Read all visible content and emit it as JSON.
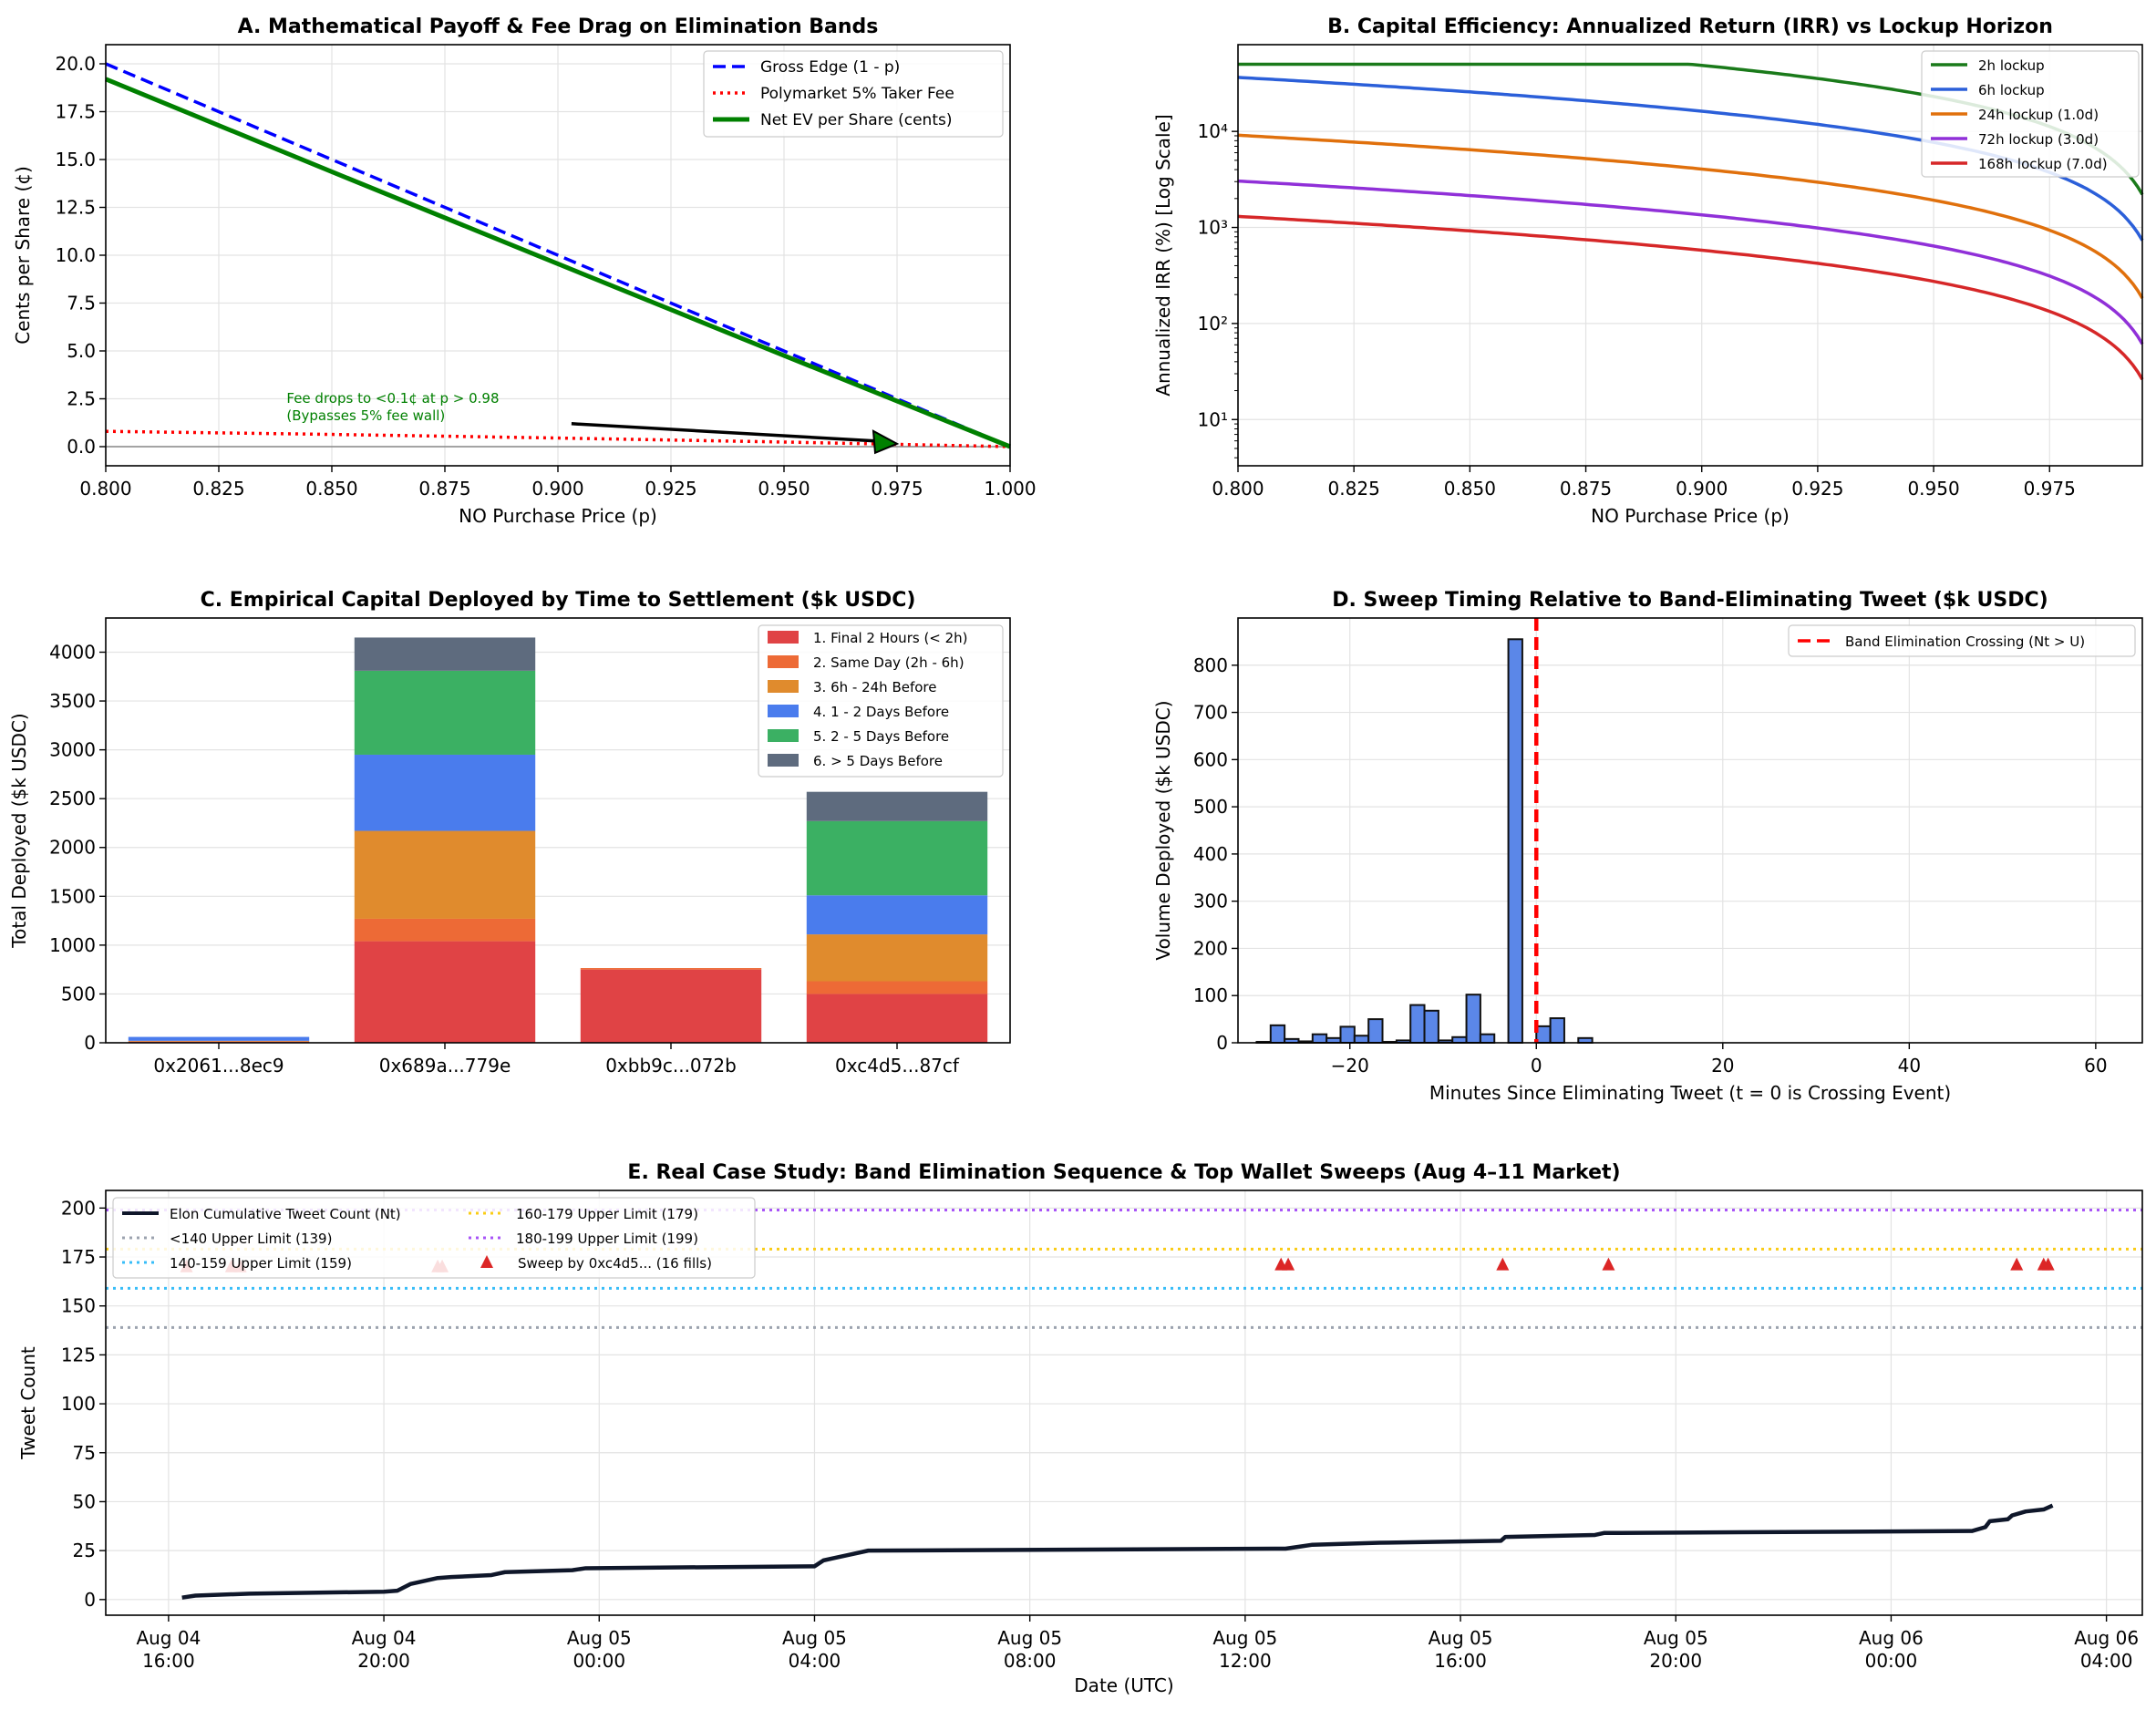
{
  "chart_data": [
    {
      "id": "A",
      "type": "line",
      "title": "A. Mathematical Payoff & Fee Drag on Elimination Bands",
      "xlabel": "NO Purchase Price (p)",
      "ylabel": "Cents per Share (¢)",
      "xlim": [
        0.8,
        1.0
      ],
      "ylim": [
        -1.0,
        21.0
      ],
      "xticks": [
        "0.800",
        "0.825",
        "0.850",
        "0.875",
        "0.900",
        "0.925",
        "0.950",
        "0.975",
        "1.000"
      ],
      "yticks": [
        "0.0",
        "2.5",
        "5.0",
        "7.5",
        "10.0",
        "12.5",
        "15.0",
        "17.5",
        "20.0"
      ],
      "grid": true,
      "legend_position": "top-right",
      "series": [
        {
          "name": "Gross Edge (1 - p)",
          "color": "#0000ff",
          "style": "dashed",
          "x": [
            0.8,
            1.0
          ],
          "y": [
            20.0,
            0.0
          ]
        },
        {
          "name": "Polymarket 5% Taker Fee",
          "color": "#ff0000",
          "style": "dotted",
          "x": [
            0.8,
            0.85,
            0.9,
            0.95,
            1.0
          ],
          "y": [
            0.8,
            0.64,
            0.45,
            0.24,
            0.0
          ]
        },
        {
          "name": "Net EV per Share (cents)",
          "color": "#008000",
          "style": "solid",
          "x": [
            0.8,
            0.85,
            0.9,
            0.95,
            1.0
          ],
          "y": [
            19.2,
            14.36,
            9.55,
            4.76,
            0.0
          ]
        }
      ],
      "annotation": {
        "lines": [
          "Fee drops to <0.1¢ at p > 0.98",
          "(Bypasses 5% fee wall)"
        ],
        "text_at": [
          0.84,
          2.1
        ],
        "arrow_from": [
          0.903,
          1.2
        ],
        "arrow_to": [
          0.975,
          0.15
        ]
      }
    },
    {
      "id": "B",
      "type": "line",
      "title": "B. Capital Efficiency: Annualized Return (IRR) vs Lockup Horizon",
      "xlabel": "NO Purchase Price (p)",
      "ylabel": "Annualized IRR (%) [Log Scale]",
      "yscale": "log",
      "xlim": [
        0.8,
        0.995
      ],
      "ylim": [
        3.3,
        80000
      ],
      "xticks": [
        "0.800",
        "0.825",
        "0.850",
        "0.875",
        "0.900",
        "0.925",
        "0.950",
        "0.975"
      ],
      "yticks": [
        "10¹",
        "10²",
        "10³",
        "10⁴"
      ],
      "grid": true,
      "legend_position": "top-right",
      "cap": 50000,
      "series": [
        {
          "name": "2h lockup",
          "color": "#1a7a1a",
          "hours": 2
        },
        {
          "name": "6h lockup",
          "color": "#2b5fd9",
          "hours": 6
        },
        {
          "name": "24h lockup (1.0d)",
          "color": "#e0700c",
          "hours": 24
        },
        {
          "name": "72h lockup (3.0d)",
          "color": "#9030d8",
          "hours": 72
        },
        {
          "name": "168h lockup (7.0d)",
          "color": "#d62728",
          "hours": 168
        }
      ]
    },
    {
      "id": "C",
      "type": "bar",
      "stacked": true,
      "title": "C. Empirical Capital Deployed by Time to Settlement ($k USDC)",
      "ylabel": "Total Deployed ($k USDC)",
      "ylim": [
        0,
        4350
      ],
      "yticks": [
        "0",
        "500",
        "1000",
        "1500",
        "2000",
        "2500",
        "3000",
        "3500",
        "4000"
      ],
      "grid": true,
      "legend_position": "top-right",
      "categories": [
        "0x2061...8ec9",
        "0x689a...779e",
        "0xbb9c...072b",
        "0xc4d5...87cf"
      ],
      "series": [
        {
          "name": "1. Final 2 Hours (< 2h)",
          "color": "#e04345",
          "values": [
            10,
            1040,
            750,
            500
          ]
        },
        {
          "name": "2. Same Day (2h - 6h)",
          "color": "#ed6a36",
          "values": [
            5,
            230,
            15,
            130
          ]
        },
        {
          "name": "3. 6h - 24h Before",
          "color": "#e08b2d",
          "values": [
            5,
            900,
            0,
            480
          ]
        },
        {
          "name": "4. 1 - 2 Days Before",
          "color": "#4a7ced",
          "values": [
            40,
            780,
            0,
            400
          ]
        },
        {
          "name": "5. 2 - 5 Days Before",
          "color": "#3bb063",
          "values": [
            0,
            860,
            0,
            760
          ]
        },
        {
          "name": "6. > 5 Days Before",
          "color": "#5e6b7e",
          "values": [
            0,
            340,
            0,
            300
          ]
        }
      ]
    },
    {
      "id": "D",
      "type": "bar",
      "title": "D. Sweep Timing Relative to Band-Eliminating Tweet ($k USDC)",
      "xlabel": "Minutes Since Eliminating Tweet (t = 0 is Crossing Event)",
      "ylabel": "Volume Deployed ($k USDC)",
      "xlim": [
        -32,
        65
      ],
      "ylim": [
        0,
        900
      ],
      "xticks": [
        "−20",
        "0",
        "20",
        "40",
        "60"
      ],
      "yticks": [
        "0",
        "100",
        "200",
        "300",
        "400",
        "500",
        "600",
        "700",
        "800"
      ],
      "grid": true,
      "legend_position": "top-right",
      "bin_width": 1.5,
      "bar_color": "#5b87e8",
      "x": [
        -29.25,
        -27.75,
        -26.25,
        -24.75,
        -23.25,
        -21.75,
        -20.25,
        -18.75,
        -17.25,
        -15.75,
        -14.25,
        -12.75,
        -11.25,
        -9.75,
        -8.25,
        -6.75,
        -5.25,
        -3.75,
        -2.25,
        -0.75,
        0.75,
        2.25,
        3.75,
        5.25,
        6.75
      ],
      "values": [
        2,
        37,
        8,
        3,
        18,
        10,
        34,
        15,
        50,
        2,
        5,
        80,
        68,
        5,
        12,
        102,
        18,
        0,
        855,
        0,
        35,
        52,
        0,
        10,
        0
      ],
      "vline": {
        "name": "Band Elimination Crossing (Nt > U)",
        "x": 0,
        "color": "#ff0000"
      }
    },
    {
      "id": "E",
      "type": "line",
      "title": "E. Real Case Study: Band Elimination Sequence & Top Wallet Sweeps (Aug 4–11 Market)",
      "xlabel": "Date (UTC)",
      "ylabel": "Tweet Count",
      "xlim": [
        "2024-08-04 14:50",
        "2024-08-06 04:40"
      ],
      "ylim": [
        -8,
        209
      ],
      "xticks": [
        [
          "Aug 04",
          "16:00"
        ],
        [
          "Aug 04",
          "20:00"
        ],
        [
          "Aug 05",
          "00:00"
        ],
        [
          "Aug 05",
          "04:00"
        ],
        [
          "Aug 05",
          "08:00"
        ],
        [
          "Aug 05",
          "12:00"
        ],
        [
          "Aug 05",
          "16:00"
        ],
        [
          "Aug 05",
          "20:00"
        ],
        [
          "Aug 06",
          "00:00"
        ],
        [
          "Aug 06",
          "04:00"
        ]
      ],
      "yticks": [
        "0",
        "25",
        "50",
        "75",
        "100",
        "125",
        "150",
        "175",
        "200"
      ],
      "grid": true,
      "legend_position": "top-left",
      "series": [
        {
          "name": "Elon Cumulative Tweet Count (Nt)",
          "color": "#0f172a",
          "x": [
            "2024-08-04 16:15",
            "2024-08-04 16:30",
            "2024-08-04 17:30",
            "2024-08-04 20:00",
            "2024-08-04 20:15",
            "2024-08-04 20:30",
            "2024-08-04 21:00",
            "2024-08-04 21:15",
            "2024-08-04 22:00",
            "2024-08-04 22:15",
            "2024-08-04 23:30",
            "2024-08-04 23:45",
            "2024-08-05 04:00",
            "2024-08-05 04:10",
            "2024-08-05 04:20",
            "2024-08-05 04:40",
            "2024-08-05 05:00",
            "2024-08-05 12:45",
            "2024-08-05 13:00",
            "2024-08-05 13:15",
            "2024-08-05 14:30",
            "2024-08-05 16:45",
            "2024-08-05 16:50",
            "2024-08-05 18:30",
            "2024-08-05 18:40",
            "2024-08-06 01:30",
            "2024-08-06 01:45",
            "2024-08-06 01:50",
            "2024-08-06 02:10",
            "2024-08-06 02:15",
            "2024-08-06 02:30",
            "2024-08-06 02:50",
            "2024-08-06 03:00"
          ],
          "y": [
            1,
            2,
            3,
            4,
            4.5,
            8,
            11,
            11.5,
            12.5,
            14,
            15,
            16,
            17,
            20,
            21,
            23,
            25,
            26,
            27,
            28,
            29,
            30,
            32,
            33,
            34,
            35,
            37,
            40,
            41,
            43,
            45,
            46,
            48
          ]
        },
        {
          "name": "<140 Upper Limit (139)",
          "color": "#9ca3af",
          "style": "dotted",
          "y": 139
        },
        {
          "name": "140-159 Upper Limit (159)",
          "color": "#38bdf8",
          "style": "dotted",
          "y": 159
        },
        {
          "name": "160-179 Upper Limit (179)",
          "color": "#facc15",
          "style": "dotted",
          "y": 179
        },
        {
          "name": "180-199 Upper Limit (199)",
          "color": "#a855f7",
          "style": "dotted",
          "y": 199
        },
        {
          "name": "Sweep by 0xc4d5... (16 fills)",
          "color": "#dc2626",
          "marker": "triangle",
          "x": [
            "2024-08-04 16:20",
            "2024-08-04 17:10",
            "2024-08-04 17:20",
            "2024-08-04 21:00",
            "2024-08-04 21:05",
            "2024-08-05 12:40",
            "2024-08-05 12:48",
            "2024-08-05 16:47",
            "2024-08-05 18:45",
            "2024-08-06 02:20",
            "2024-08-06 02:50",
            "2024-08-06 02:55"
          ],
          "y": [
            170,
            170,
            170,
            170,
            170,
            171,
            171,
            171,
            171,
            171,
            171,
            171
          ]
        }
      ]
    }
  ]
}
